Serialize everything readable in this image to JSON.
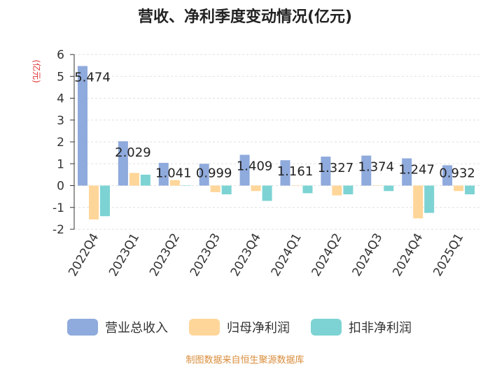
{
  "title": "营收、净利季度变动情况(亿元)",
  "source": "制图数据来自恒生聚源数据库",
  "colors": {
    "revenue": "#8faadc",
    "net_profit": "#ffd699",
    "deducted_profit": "#7dd3d3",
    "unit_label": "#e03030"
  },
  "chart_data": {
    "type": "bar",
    "title": "营收、净利季度变动情况(亿元)",
    "ylabel": "(亿元)",
    "xlabel": "",
    "ylim": [
      -2,
      6
    ],
    "yticks": [
      6,
      5,
      4,
      3,
      2,
      1,
      0,
      -1,
      -2
    ],
    "categories": [
      "2022Q4",
      "2023Q1",
      "2023Q2",
      "2023Q3",
      "2023Q4",
      "2024Q1",
      "2024Q2",
      "2024Q3",
      "2024Q4",
      "2025Q1"
    ],
    "series": [
      {
        "name": "营业总收入",
        "values": [
          5.474,
          2.029,
          1.041,
          0.999,
          1.409,
          1.161,
          1.327,
          1.374,
          1.247,
          0.932
        ]
      },
      {
        "name": "归母净利润",
        "values": [
          -1.55,
          0.58,
          0.25,
          -0.3,
          -0.25,
          0.0,
          -0.45,
          0.0,
          -1.5,
          -0.25
        ]
      },
      {
        "name": "扣非净利润",
        "values": [
          -1.4,
          0.5,
          0.0,
          -0.4,
          -0.7,
          -0.35,
          -0.4,
          -0.25,
          -1.25,
          -0.4
        ]
      }
    ],
    "data_labels": [
      "5.474",
      "2.029",
      "1.041",
      "0.999",
      "1.409",
      "1.161",
      "1.327",
      "1.374",
      "1.247",
      "0.932"
    ],
    "legend": "bottom-center"
  }
}
